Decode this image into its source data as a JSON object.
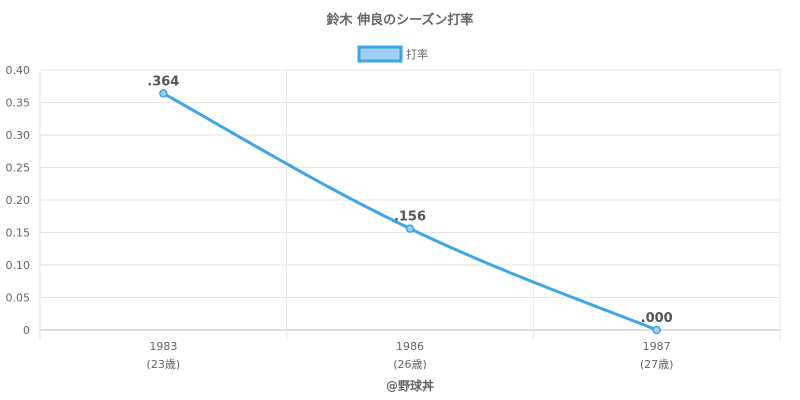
{
  "chart_data": {
    "type": "line",
    "title": "鈴木 伸良のシーズン打率",
    "legend": {
      "label": "打率",
      "position": "top-center"
    },
    "categories": [
      "1983",
      "1986",
      "1987"
    ],
    "sublabels": [
      "(23歳)",
      "(26歳)",
      "(27歳)"
    ],
    "series": [
      {
        "name": "打率",
        "values": [
          0.364,
          0.156,
          0.0
        ],
        "labels": [
          ".364",
          ".156",
          ".000"
        ]
      }
    ],
    "ylim": [
      0,
      0.4
    ],
    "yticks": [
      "0",
      "0.05",
      "0.10",
      "0.15",
      "0.20",
      "0.25",
      "0.30",
      "0.35",
      "0.40"
    ],
    "grid": true,
    "colors": {
      "line": "#3ea5e8",
      "fill": "#9fd0f3",
      "grid": "#e6e6e6",
      "axis": "#bbbbbb"
    }
  },
  "credit": "@野球丼"
}
